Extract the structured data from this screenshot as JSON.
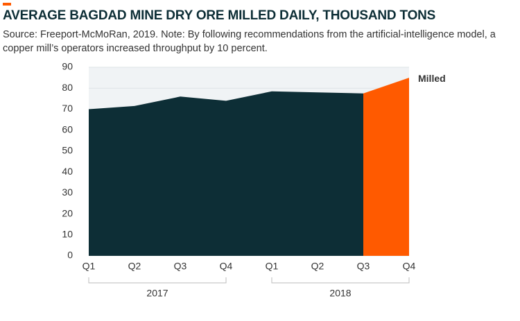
{
  "chart_data": {
    "type": "area",
    "title": "AVERAGE BAGDAD MINE DRY ORE MILLED DAILY, THOUSAND TONS",
    "subtitle": "Source: Freeport-McMoRan, 2019. Note: By following recommendations from the artificial-intelligence model, a copper mill’s operators increased throughput by 10 percent.",
    "groups": [
      {
        "label": "2017",
        "categories": [
          "Q1",
          "Q2",
          "Q3",
          "Q4"
        ]
      },
      {
        "label": "2018",
        "categories": [
          "Q1",
          "Q2",
          "Q3",
          "Q4"
        ]
      }
    ],
    "series": [
      {
        "name": "Milled",
        "color": "#0d2e36",
        "highlight_color": "#ff5a00",
        "highlight_start": 6,
        "values": [
          70,
          71.5,
          76,
          74,
          78.5,
          78,
          77.5,
          85
        ]
      }
    ],
    "ylim": [
      0,
      90
    ],
    "yticks": [
      0,
      10,
      20,
      30,
      40,
      50,
      60,
      70,
      80,
      90
    ],
    "grid": true,
    "background": "#f0f3f5"
  }
}
